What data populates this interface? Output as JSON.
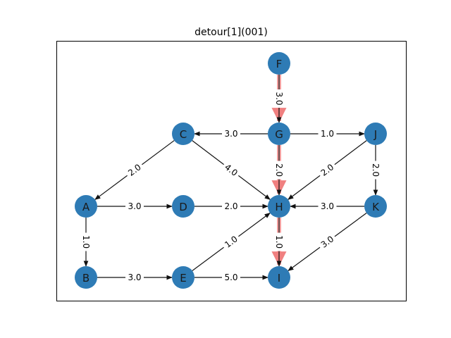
{
  "title": "detour[1](001)",
  "colors": {
    "node_fill": "#2e7bb5",
    "edge": "#111111",
    "highlight": "#f08080",
    "frame": "#000000"
  },
  "nodes": [
    "A",
    "B",
    "C",
    "D",
    "E",
    "F",
    "G",
    "H",
    "I",
    "J",
    "K"
  ],
  "edges": [
    {
      "from": "F",
      "to": "G",
      "label": "3.0",
      "highlighted": true
    },
    {
      "from": "G",
      "to": "C",
      "label": "3.0",
      "highlighted": false
    },
    {
      "from": "G",
      "to": "J",
      "label": "1.0",
      "highlighted": false
    },
    {
      "from": "G",
      "to": "H",
      "label": "2.0",
      "highlighted": true
    },
    {
      "from": "C",
      "to": "A",
      "label": "2.0",
      "highlighted": false
    },
    {
      "from": "C",
      "to": "H",
      "label": "4.0",
      "highlighted": false
    },
    {
      "from": "J",
      "to": "H",
      "label": "2.0",
      "highlighted": false
    },
    {
      "from": "J",
      "to": "K",
      "label": "2.0",
      "highlighted": false
    },
    {
      "from": "A",
      "to": "D",
      "label": "3.0",
      "highlighted": false
    },
    {
      "from": "D",
      "to": "H",
      "label": "2.0",
      "highlighted": false
    },
    {
      "from": "K",
      "to": "H",
      "label": "3.0",
      "highlighted": false
    },
    {
      "from": "A",
      "to": "B",
      "label": "1.0",
      "highlighted": false
    },
    {
      "from": "H",
      "to": "I",
      "label": "1.0",
      "highlighted": true
    },
    {
      "from": "K",
      "to": "I",
      "label": "3.0",
      "highlighted": false
    },
    {
      "from": "E",
      "to": "H",
      "label": "1.0",
      "highlighted": false
    },
    {
      "from": "B",
      "to": "E",
      "label": "3.0",
      "highlighted": false
    },
    {
      "from": "E",
      "to": "I",
      "label": "5.0",
      "highlighted": false
    }
  ]
}
